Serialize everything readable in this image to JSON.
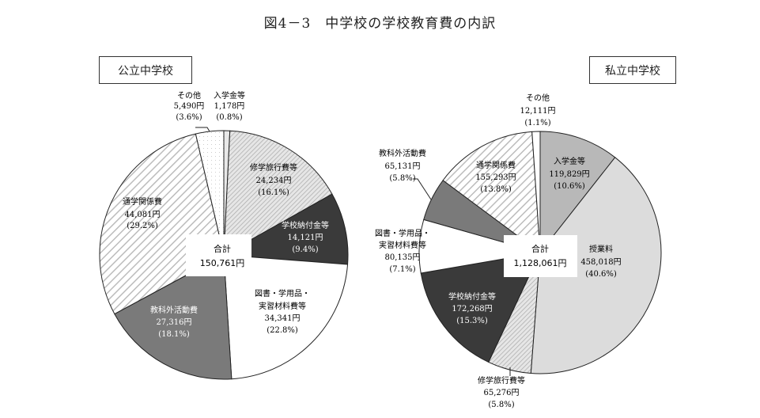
{
  "title": "図4－3　中学校の学校教育費の内訳",
  "chart_data": [
    {
      "type": "pie",
      "title": "公立中学校",
      "total_label": "合計",
      "total_value": "150,761円",
      "start_angle_deg": 0,
      "direction": "clockwise",
      "slices": [
        {
          "label": "入学金等",
          "value": 1178,
          "value_text": "1,178円",
          "percent": 0.8,
          "percent_text": "(0.8%)",
          "fill": "#e8e8e8",
          "pattern": "none"
        },
        {
          "label": "修学旅行費等",
          "value": 24234,
          "value_text": "24,234円",
          "percent": 16.1,
          "percent_text": "(16.1%)",
          "fill": "#d9d9d9",
          "pattern": "fine-diagonal"
        },
        {
          "label": "学校納付金等",
          "value": 14121,
          "value_text": "14,121円",
          "percent": 9.4,
          "percent_text": "(9.4%)",
          "fill": "#3a3a3a",
          "pattern": "none"
        },
        {
          "label": "図書・学用品・実習材料費等",
          "value": 34341,
          "value_text": "34,341円",
          "percent": 22.8,
          "percent_text": "(22.8%)",
          "fill": "#ffffff",
          "pattern": "none"
        },
        {
          "label": "教科外活動費",
          "value": 27316,
          "value_text": "27,316円",
          "percent": 18.1,
          "percent_text": "(18.1%)",
          "fill": "#7a7a7a",
          "pattern": "none"
        },
        {
          "label": "通学関係費",
          "value": 44081,
          "value_text": "44,081円",
          "percent": 29.2,
          "percent_text": "(29.2%)",
          "fill": "#ececec",
          "pattern": "wide-diagonal"
        },
        {
          "label": "その他",
          "value": 5490,
          "value_text": "5,490円",
          "percent": 3.6,
          "percent_text": "(3.6%)",
          "fill": "#f7f7f7",
          "pattern": "dots"
        }
      ]
    },
    {
      "type": "pie",
      "title": "私立中学校",
      "total_label": "合計",
      "total_value": "1,128,061円",
      "start_angle_deg": 0,
      "direction": "clockwise",
      "slices": [
        {
          "label": "入学金等",
          "value": 119829,
          "value_text": "119,829円",
          "percent": 10.6,
          "percent_text": "(10.6%)",
          "fill": "#b8b8b8",
          "pattern": "none"
        },
        {
          "label": "授業料",
          "value": 458018,
          "value_text": "458,018円",
          "percent": 40.6,
          "percent_text": "(40.6%)",
          "fill": "#dcdcdc",
          "pattern": "none"
        },
        {
          "label": "修学旅行費等",
          "value": 65276,
          "value_text": "65,276円",
          "percent": 5.8,
          "percent_text": "(5.8%)",
          "fill": "#d9d9d9",
          "pattern": "fine-diagonal"
        },
        {
          "label": "学校納付金等",
          "value": 172268,
          "value_text": "172,268円",
          "percent": 15.3,
          "percent_text": "(15.3%)",
          "fill": "#3a3a3a",
          "pattern": "none"
        },
        {
          "label": "図書・学用品・実習材料費等",
          "value": 80135,
          "value_text": "80,135円",
          "percent": 7.1,
          "percent_text": "(7.1%)",
          "fill": "#ffffff",
          "pattern": "none"
        },
        {
          "label": "教科外活動費",
          "value": 65131,
          "value_text": "65,131円",
          "percent": 5.8,
          "percent_text": "(5.8%)",
          "fill": "#7a7a7a",
          "pattern": "none"
        },
        {
          "label": "通学関係費",
          "value": 155293,
          "value_text": "155,293円",
          "percent": 13.8,
          "percent_text": "(13.8%)",
          "fill": "#ececec",
          "pattern": "wide-diagonal"
        },
        {
          "label": "その他",
          "value": 12111,
          "value_text": "12,111円",
          "percent": 1.1,
          "percent_text": "(1.1%)",
          "fill": "#ffffff",
          "pattern": "none"
        }
      ]
    }
  ],
  "labels": {
    "public": {
      "panel": "公立中学校",
      "total_label": "合計",
      "total_value": "150,761円",
      "entrance": [
        "入学金等",
        "1,178円",
        "(0.8%)"
      ],
      "trip": [
        "修学旅行費等",
        "24,234円",
        "(16.1%)"
      ],
      "fees": [
        "学校納付金等",
        "14,121円",
        "(9.4%)"
      ],
      "books": [
        "図書・学用品・",
        "実習材料費等",
        "34,341円",
        "(22.8%)"
      ],
      "extra": [
        "教科外活動費",
        "27,316円",
        "(18.1%)"
      ],
      "commute": [
        "通学関係費",
        "44,081円",
        "(29.2%)"
      ],
      "other": [
        "その他",
        "5,490円",
        "(3.6%)"
      ]
    },
    "private": {
      "panel": "私立中学校",
      "total_label": "合計",
      "total_value": "1,128,061円",
      "entrance": [
        "入学金等",
        "119,829円",
        "(10.6%)"
      ],
      "tuition": [
        "授業料",
        "458,018円",
        "(40.6%)"
      ],
      "trip": [
        "修学旅行費等",
        "65,276円",
        "(5.8%)"
      ],
      "fees": [
        "学校納付金等",
        "172,268円",
        "(15.3%)"
      ],
      "books": [
        "図書・学用品・",
        "実習材料費等",
        "80,135円",
        "(7.1%)"
      ],
      "extra": [
        "教科外活動費",
        "65,131円",
        "(5.8%)"
      ],
      "commute": [
        "通学関係費",
        "155,293円",
        "(13.8%)"
      ],
      "other": [
        "その他",
        "12,111円",
        "(1.1%)"
      ]
    }
  }
}
